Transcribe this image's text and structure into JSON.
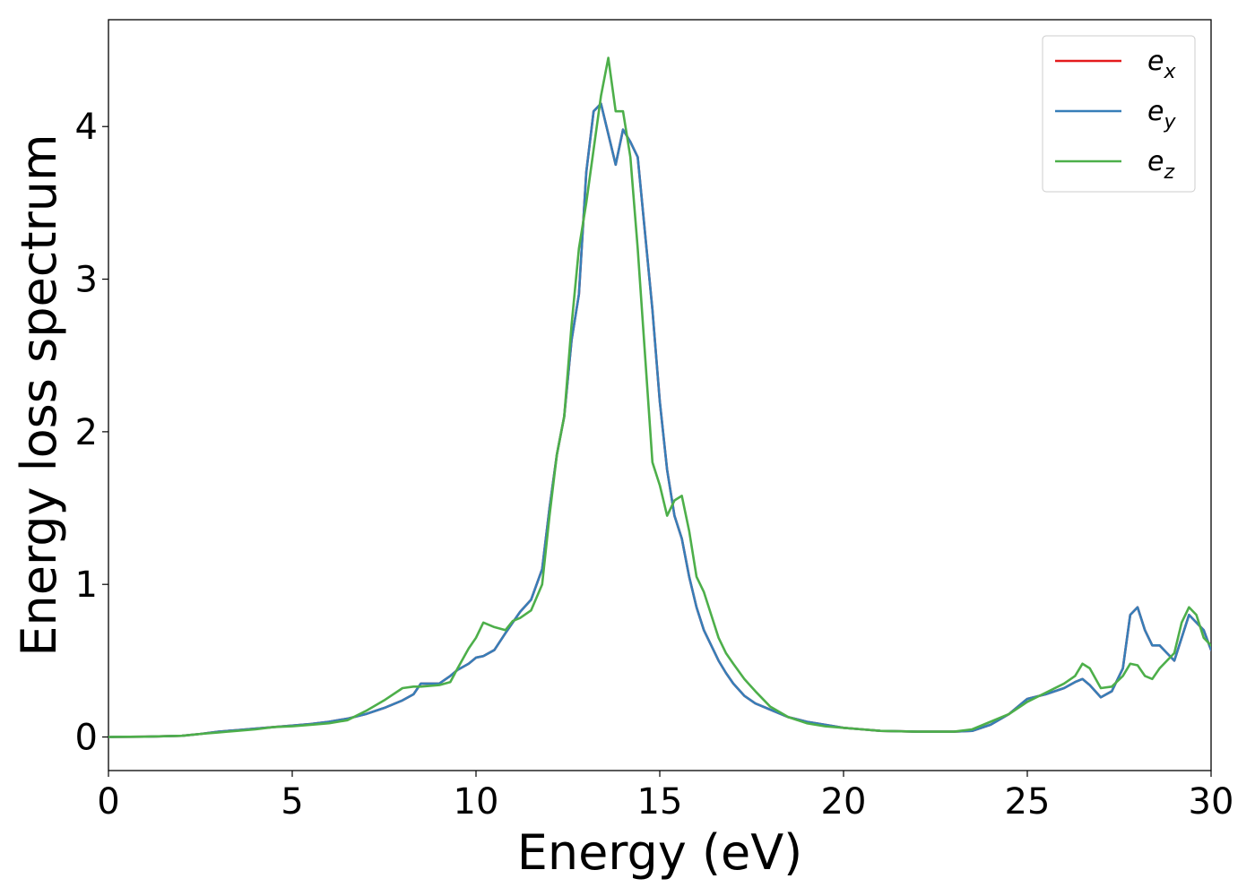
{
  "chart_data": {
    "type": "line",
    "title": "",
    "xlabel": "Energy (eV)",
    "ylabel": "Energy loss spectrum",
    "xlim": [
      0,
      30
    ],
    "ylim": [
      -0.22,
      4.7
    ],
    "xticks": [
      0,
      5,
      10,
      15,
      20,
      25,
      30
    ],
    "xtick_labels": [
      "0",
      "5",
      "10",
      "15",
      "20",
      "25",
      "30"
    ],
    "yticks": [
      0,
      1,
      2,
      3,
      4
    ],
    "ytick_labels": [
      "0",
      "1",
      "2",
      "3",
      "4"
    ],
    "grid": false,
    "legend_position": "top-right",
    "x": [
      0,
      1,
      2,
      2.5,
      3,
      3.5,
      4,
      4.5,
      5,
      5.5,
      6,
      6.5,
      7,
      7.5,
      8,
      8.3,
      8.5,
      9,
      9.3,
      9.5,
      9.8,
      10,
      10.2,
      10.5,
      10.8,
      11,
      11.2,
      11.5,
      11.8,
      12,
      12.2,
      12.4,
      12.6,
      12.8,
      13,
      13.2,
      13.4,
      13.6,
      13.8,
      14,
      14.2,
      14.4,
      14.6,
      14.8,
      15,
      15.2,
      15.4,
      15.6,
      15.8,
      16,
      16.2,
      16.4,
      16.6,
      16.8,
      17,
      17.3,
      17.6,
      18,
      18.5,
      19,
      19.5,
      20,
      20.5,
      21,
      22,
      23,
      23.5,
      24,
      24.5,
      25,
      25.5,
      26,
      26.3,
      26.5,
      26.7,
      27,
      27.3,
      27.6,
      27.8,
      28,
      28.2,
      28.4,
      28.6,
      28.8,
      29,
      29.2,
      29.4,
      29.6,
      29.8,
      30
    ],
    "series": [
      {
        "name": "e_x",
        "label_base": "e",
        "label_sub": "x",
        "color": "#e41a1c",
        "values": [
          0,
          0.002,
          0.008,
          0.02,
          0.035,
          0.045,
          0.055,
          0.065,
          0.075,
          0.085,
          0.1,
          0.12,
          0.15,
          0.19,
          0.24,
          0.28,
          0.35,
          0.35,
          0.4,
          0.44,
          0.48,
          0.52,
          0.53,
          0.57,
          0.68,
          0.75,
          0.82,
          0.9,
          1.1,
          1.5,
          1.85,
          2.1,
          2.6,
          2.9,
          3.7,
          4.1,
          4.15,
          3.95,
          3.75,
          3.98,
          3.9,
          3.8,
          3.3,
          2.8,
          2.2,
          1.75,
          1.45,
          1.3,
          1.05,
          0.85,
          0.7,
          0.6,
          0.5,
          0.42,
          0.35,
          0.27,
          0.22,
          0.18,
          0.13,
          0.1,
          0.08,
          0.06,
          0.05,
          0.04,
          0.035,
          0.035,
          0.04,
          0.08,
          0.15,
          0.25,
          0.28,
          0.32,
          0.36,
          0.38,
          0.34,
          0.26,
          0.3,
          0.45,
          0.8,
          0.85,
          0.7,
          0.6,
          0.6,
          0.55,
          0.5,
          0.65,
          0.8,
          0.75,
          0.7,
          0.57
        ]
      },
      {
        "name": "e_y",
        "label_base": "e",
        "label_sub": "y",
        "color": "#377eb8",
        "values": [
          0,
          0.002,
          0.008,
          0.02,
          0.035,
          0.045,
          0.055,
          0.065,
          0.075,
          0.085,
          0.1,
          0.12,
          0.15,
          0.19,
          0.24,
          0.28,
          0.35,
          0.35,
          0.4,
          0.44,
          0.48,
          0.52,
          0.53,
          0.57,
          0.68,
          0.75,
          0.82,
          0.9,
          1.1,
          1.5,
          1.85,
          2.1,
          2.6,
          2.9,
          3.7,
          4.1,
          4.15,
          3.95,
          3.75,
          3.98,
          3.9,
          3.8,
          3.3,
          2.8,
          2.2,
          1.75,
          1.45,
          1.3,
          1.05,
          0.85,
          0.7,
          0.6,
          0.5,
          0.42,
          0.35,
          0.27,
          0.22,
          0.18,
          0.13,
          0.1,
          0.08,
          0.06,
          0.05,
          0.04,
          0.035,
          0.035,
          0.04,
          0.08,
          0.15,
          0.25,
          0.28,
          0.32,
          0.36,
          0.38,
          0.34,
          0.26,
          0.3,
          0.45,
          0.8,
          0.85,
          0.7,
          0.6,
          0.6,
          0.55,
          0.5,
          0.65,
          0.8,
          0.75,
          0.7,
          0.57
        ]
      },
      {
        "name": "e_z",
        "label_base": "e",
        "label_sub": "z",
        "color": "#4daf4a",
        "values": [
          0,
          0.002,
          0.008,
          0.02,
          0.03,
          0.04,
          0.05,
          0.065,
          0.07,
          0.08,
          0.09,
          0.11,
          0.17,
          0.24,
          0.32,
          0.33,
          0.33,
          0.34,
          0.36,
          0.45,
          0.58,
          0.65,
          0.75,
          0.72,
          0.7,
          0.76,
          0.78,
          0.83,
          1.0,
          1.45,
          1.85,
          2.1,
          2.7,
          3.2,
          3.5,
          3.85,
          4.2,
          4.45,
          4.1,
          4.1,
          3.8,
          3.2,
          2.5,
          1.8,
          1.65,
          1.45,
          1.55,
          1.58,
          1.35,
          1.05,
          0.95,
          0.8,
          0.65,
          0.55,
          0.48,
          0.38,
          0.3,
          0.2,
          0.13,
          0.09,
          0.07,
          0.06,
          0.05,
          0.04,
          0.035,
          0.035,
          0.05,
          0.1,
          0.15,
          0.23,
          0.29,
          0.35,
          0.4,
          0.48,
          0.45,
          0.32,
          0.33,
          0.4,
          0.48,
          0.47,
          0.4,
          0.38,
          0.45,
          0.5,
          0.55,
          0.75,
          0.85,
          0.8,
          0.65,
          0.6
        ]
      }
    ]
  }
}
